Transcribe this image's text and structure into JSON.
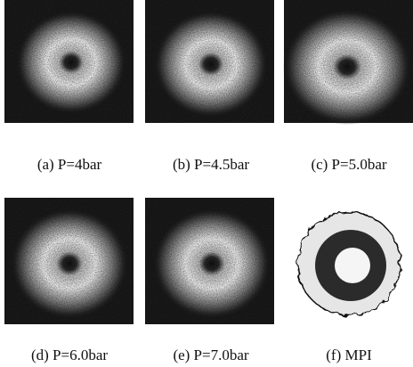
{
  "panels": [
    {
      "caption": "(a)  P=4bar"
    },
    {
      "caption": "(b)  P=4.5bar"
    },
    {
      "caption": "(c)  P=5.0bar"
    },
    {
      "caption": "(d)  P=6.0bar"
    },
    {
      "caption": "(e)  P=7.0bar"
    },
    {
      "caption": "(f)  MPI"
    }
  ]
}
